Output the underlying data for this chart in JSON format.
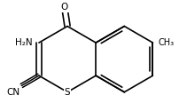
{
  "bg_color": "#ffffff",
  "bond_color": "#000000",
  "bond_lw": 1.2,
  "font_size": 7.5,
  "font_size_small": 7.0,
  "label_S": "S",
  "label_O": "O",
  "label_NH2": "H₂N",
  "label_CN": "CN",
  "label_CH3": "CH₃",
  "xlim": [
    -1.6,
    2.8
  ],
  "ylim": [
    -1.4,
    1.6
  ]
}
